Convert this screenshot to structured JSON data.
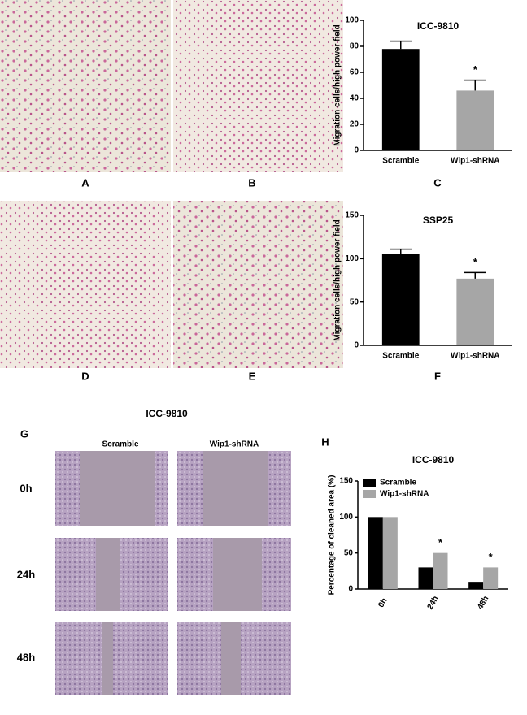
{
  "panel_labels": [
    "A",
    "B",
    "C",
    "D",
    "E",
    "F",
    "G",
    "H"
  ],
  "scratch_assay": {
    "title": "ICC-9810",
    "columns": [
      "Scramble",
      "Wip1-shRNA"
    ],
    "rows": [
      "0h",
      "24h",
      "48h"
    ]
  },
  "chart_data": [
    {
      "type": "bar",
      "title": "ICC-9810",
      "y_label": "Migration cells/high power field",
      "categories": [
        "Scramble",
        "Wip1-shRNA"
      ],
      "values": [
        78,
        46
      ],
      "errors": [
        6,
        8
      ],
      "colors": [
        "#000000",
        "#a6a6a6"
      ],
      "significance": [
        null,
        "*"
      ],
      "ylim": [
        0,
        100
      ],
      "yticks": [
        0,
        20,
        40,
        60,
        80,
        100
      ]
    },
    {
      "type": "bar",
      "title": "SSP25",
      "y_label": "Migration cells/high power field",
      "categories": [
        "Scramble",
        "Wip1-shRNA"
      ],
      "values": [
        105,
        77
      ],
      "errors": [
        6,
        7
      ],
      "colors": [
        "#000000",
        "#a6a6a6"
      ],
      "significance": [
        null,
        "*"
      ],
      "ylim": [
        0,
        150
      ],
      "yticks": [
        0,
        50,
        100,
        150
      ]
    },
    {
      "type": "grouped-bar",
      "title": "ICC-9810",
      "y_label": "Percentage  of cleaned area (%)",
      "categories": [
        "0h",
        "24h",
        "48h"
      ],
      "series": [
        {
          "name": "Scramble",
          "color": "#000000",
          "values": [
            100,
            30,
            10
          ],
          "significance": [
            null,
            null,
            null
          ]
        },
        {
          "name": "Wip1-shRNA",
          "color": "#a6a6a6",
          "values": [
            100,
            50,
            30
          ],
          "significance": [
            null,
            "*",
            "*"
          ]
        }
      ],
      "ylim": [
        0,
        150
      ],
      "yticks": [
        0,
        50,
        100,
        150
      ],
      "legend": "top-left"
    }
  ]
}
